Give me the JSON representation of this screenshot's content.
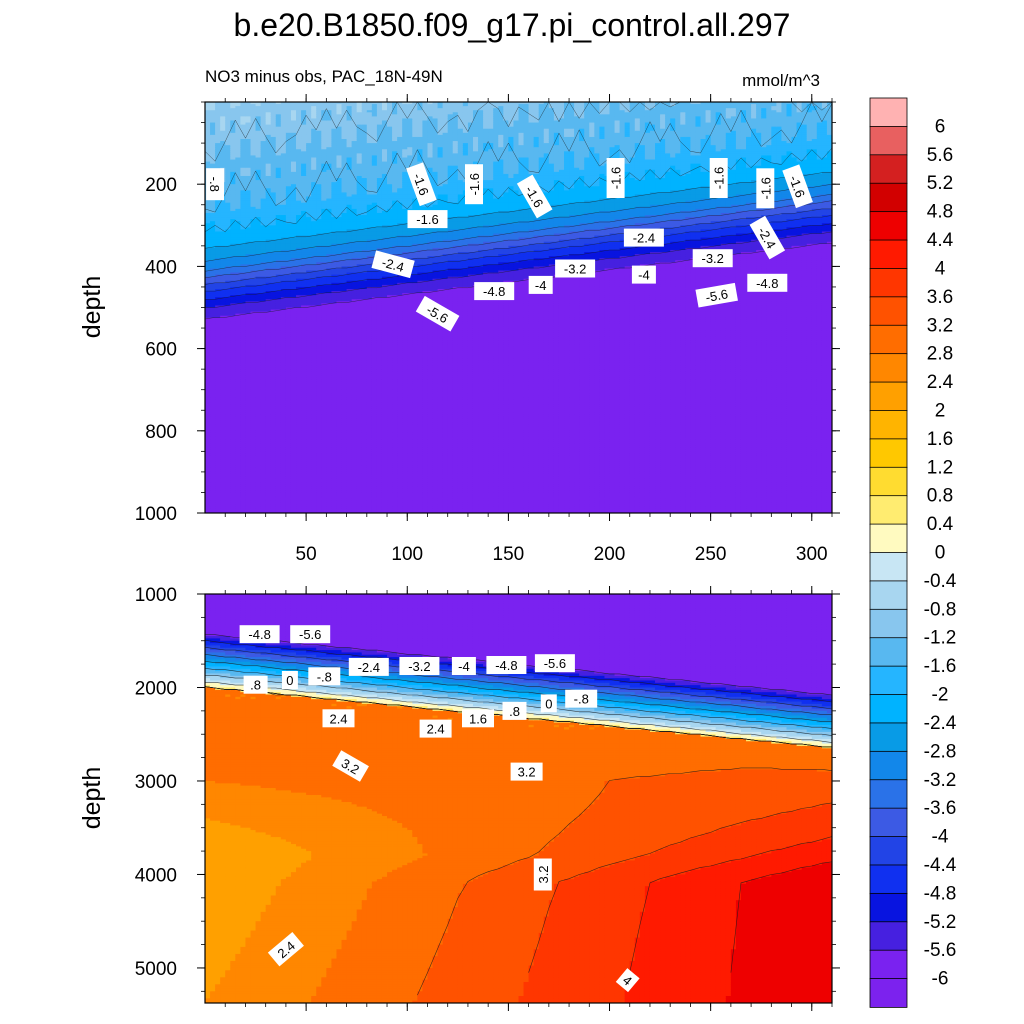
{
  "figure": {
    "title": "b.e20.B1850.f09_g17.pi_control.all.297",
    "left_subtitle": "NO3 minus obs, PAC_18N-49N",
    "right_subtitle": "mmol/m^3"
  },
  "chart_data": [
    {
      "type": "heatmap",
      "subtype": "filled-contour",
      "panel": "upper",
      "title": "NO3 minus obs, PAC_18N-49N",
      "units": "mmol/m^3",
      "xlabel": "",
      "ylabel": "depth",
      "xlim": [
        0,
        310
      ],
      "ylim": [
        1000,
        0
      ],
      "xticks": [
        50,
        100,
        150,
        200,
        250,
        300
      ],
      "yticks": [
        200,
        400,
        600,
        800,
        1000
      ],
      "field_rows": [
        {
          "depth": 0,
          "value": -0.8
        },
        {
          "depth": 120,
          "value": -1.2
        },
        {
          "depth": 260,
          "value": -1.6
        },
        {
          "depth": 340,
          "value": -2.2
        },
        {
          "depth": 400,
          "value": -3.0
        },
        {
          "depth": 460,
          "value": -4.4
        },
        {
          "depth": 510,
          "value": -5.4
        },
        {
          "depth": 560,
          "value": -6.0
        },
        {
          "depth": 1000,
          "value": -6.0
        }
      ],
      "slope_per_x": -0.6,
      "contour_labels": [
        {
          "text": "-.8",
          "x": 5,
          "depth": 200,
          "rotate": 90
        },
        {
          "text": "-1.6",
          "x": 107,
          "depth": 200,
          "rotate": 70
        },
        {
          "text": "-1.6",
          "x": 133,
          "depth": 200,
          "rotate": -90
        },
        {
          "text": "-1.6",
          "x": 163,
          "depth": 230,
          "rotate": 60
        },
        {
          "text": "-1.6",
          "x": 203,
          "depth": 185,
          "rotate": -90
        },
        {
          "text": "-1.6",
          "x": 254,
          "depth": 185,
          "rotate": -90
        },
        {
          "text": "-1.6",
          "x": 277,
          "depth": 210,
          "rotate": -90
        },
        {
          "text": "-1.6",
          "x": 293,
          "depth": 205,
          "rotate": 70
        },
        {
          "text": "-1.6",
          "x": 110,
          "depth": 285,
          "rotate": 0
        },
        {
          "text": "-2.4",
          "x": 217,
          "depth": 330,
          "rotate": 0
        },
        {
          "text": "-2.4",
          "x": 278,
          "depth": 330,
          "rotate": 60
        },
        {
          "text": "-2.4",
          "x": 93,
          "depth": 395,
          "rotate": 15
        },
        {
          "text": "-3.2",
          "x": 183,
          "depth": 405,
          "rotate": 0
        },
        {
          "text": "-3.2",
          "x": 251,
          "depth": 380,
          "rotate": 0
        },
        {
          "text": "-4",
          "x": 217,
          "depth": 420,
          "rotate": 0
        },
        {
          "text": "-4",
          "x": 166,
          "depth": 445,
          "rotate": 0
        },
        {
          "text": "-4.8",
          "x": 143,
          "depth": 460,
          "rotate": 0
        },
        {
          "text": "-4.8",
          "x": 278,
          "depth": 440,
          "rotate": 0
        },
        {
          "text": "-5.6",
          "x": 115,
          "depth": 515,
          "rotate": 30
        },
        {
          "text": "-5.6",
          "x": 253,
          "depth": 470,
          "rotate": -10
        }
      ]
    },
    {
      "type": "heatmap",
      "subtype": "filled-contour",
      "panel": "lower",
      "units": "mmol/m^3",
      "xlabel": "",
      "ylabel": "depth",
      "xlim": [
        0,
        310
      ],
      "ylim": [
        5375,
        1000
      ],
      "yticks": [
        1000,
        2000,
        3000,
        4000,
        5000
      ],
      "front": {
        "depth_at_x0": 1850,
        "depth_at_xmax": 2500,
        "width": 800,
        "levels": [
          -6.0,
          -5.6,
          -4.8,
          -4.0,
          -3.2,
          -2.4,
          -1.6,
          -0.8,
          0,
          0.8,
          1.6,
          2.4,
          2.8
        ]
      },
      "deep_field": [
        {
          "depth": 3000,
          "value": 2.8
        },
        {
          "depth": 3800,
          "value": 2.0
        },
        {
          "depth": 5375,
          "value": 2.4
        }
      ],
      "deep_max": {
        "x": 310,
        "depth": 4900,
        "value": 4.8
      },
      "contour_labels": [
        {
          "text": "-4.8",
          "x": 27,
          "depth": 1430,
          "rotate": 0
        },
        {
          "text": "-5.6",
          "x": 52,
          "depth": 1430,
          "rotate": 0
        },
        {
          "text": "-2.4",
          "x": 81,
          "depth": 1780,
          "rotate": 0
        },
        {
          "text": "-3.2",
          "x": 106,
          "depth": 1770,
          "rotate": 0
        },
        {
          "text": "-4",
          "x": 128,
          "depth": 1770,
          "rotate": 0
        },
        {
          "text": "-4.8",
          "x": 149,
          "depth": 1760,
          "rotate": 0
        },
        {
          "text": "-5.6",
          "x": 173,
          "depth": 1740,
          "rotate": 0
        },
        {
          "text": ".8",
          "x": 25,
          "depth": 1970,
          "rotate": 0
        },
        {
          "text": "0",
          "x": 42,
          "depth": 1920,
          "rotate": 0
        },
        {
          "text": "-.8",
          "x": 59,
          "depth": 1880,
          "rotate": 0
        },
        {
          "text": ".8",
          "x": 153,
          "depth": 2250,
          "rotate": 0
        },
        {
          "text": "0",
          "x": 170,
          "depth": 2170,
          "rotate": 0
        },
        {
          "text": "-.8",
          "x": 186,
          "depth": 2120,
          "rotate": 0
        },
        {
          "text": "1.6",
          "x": 135,
          "depth": 2330,
          "rotate": 0
        },
        {
          "text": "2.4",
          "x": 66,
          "depth": 2330,
          "rotate": 0
        },
        {
          "text": "2.4",
          "x": 114,
          "depth": 2440,
          "rotate": 0
        },
        {
          "text": "3.2",
          "x": 72,
          "depth": 2840,
          "rotate": 30
        },
        {
          "text": "3.2",
          "x": 159,
          "depth": 2900,
          "rotate": 0
        },
        {
          "text": "3.2",
          "x": 167,
          "depth": 4000,
          "rotate": -90
        },
        {
          "text": "2.4",
          "x": 40,
          "depth": 4800,
          "rotate": -40
        },
        {
          "text": "4",
          "x": 209,
          "depth": 5130,
          "rotate": 40
        }
      ]
    },
    {
      "type": "colorbar",
      "levels": [
        "6",
        "5.6",
        "5.2",
        "4.8",
        "4.4",
        "4",
        "3.6",
        "3.2",
        "2.8",
        "2.4",
        "2",
        "1.6",
        "1.2",
        "0.8",
        "0.4",
        "0",
        "-0.4",
        "-0.8",
        "-1.2",
        "-1.6",
        "-2",
        "-2.4",
        "-2.8",
        "-3.2",
        "-3.6",
        "-4",
        "-4.4",
        "-4.8",
        "-5.2",
        "-5.6",
        "-6"
      ],
      "colors": [
        "#ffb2b2",
        "#e86060",
        "#d42020",
        "#d20000",
        "#ee0000",
        "#ff1a00",
        "#ff3600",
        "#ff5200",
        "#ff6d00",
        "#ff8700",
        "#ffa000",
        "#ffb400",
        "#ffc800",
        "#ffdc30",
        "#ffec70",
        "#fffac0",
        "#c8e6f4",
        "#a8d6f0",
        "#88c6ee",
        "#58b8f0",
        "#25b5ff",
        "#00b3ff",
        "#089be6",
        "#1287ea",
        "#2a72e8",
        "#3c5ae4",
        "#2244e6",
        "#1030f0",
        "#0814e0",
        "#4620e0",
        "#7a22f0",
        "#7c22ee"
      ]
    }
  ]
}
